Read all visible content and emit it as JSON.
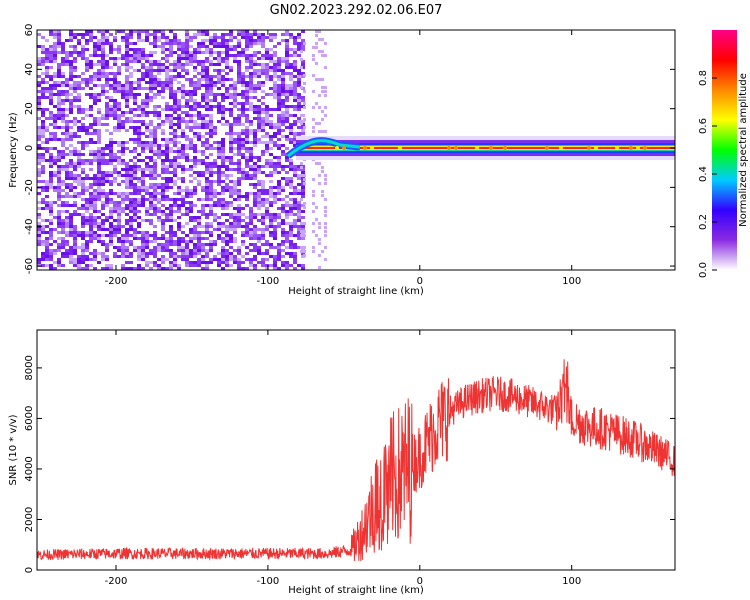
{
  "page_title": "GN02.2023.292.02.06.E07",
  "chart_data": [
    {
      "type": "heatmap",
      "title": "GN02.2023.292.02.06.E07",
      "xlabel": "Height of straight line (km)",
      "ylabel": "Frequency (Hz)",
      "xlim": [
        -252,
        168
      ],
      "ylim": [
        -62,
        60
      ],
      "x_ticks": [
        -200,
        -100,
        0,
        100
      ],
      "y_ticks": [
        -60,
        -40,
        -20,
        0,
        20,
        40,
        60
      ],
      "grid": false,
      "noise_region_x": [
        -252,
        -78
      ],
      "signal_band_center_hz": 0,
      "colorbar": {
        "label": "Normalized spectral amplitude",
        "range": [
          0.0,
          1.0
        ],
        "ticks": [
          0.0,
          0.2,
          0.4,
          0.6,
          0.8
        ],
        "colormap": [
          "#ffffff",
          "#8a2be2",
          "#3300ff",
          "#00ccff",
          "#00ff00",
          "#ffff00",
          "#ff8800",
          "#ff0000",
          "#ff0088"
        ]
      }
    },
    {
      "type": "line",
      "xlabel": "Height of straight line (km)",
      "ylabel": "SNR (10 * v/v)",
      "xlim": [
        -252,
        168
      ],
      "ylim": [
        0,
        9500
      ],
      "x_ticks": [
        -200,
        -100,
        0,
        100
      ],
      "y_ticks": [
        0,
        2000,
        4000,
        6000,
        8000
      ],
      "grid": false,
      "color": "#ee3333",
      "envelope": {
        "x": [
          -252,
          -200,
          -150,
          -100,
          -60,
          -45,
          -38,
          -30,
          -20,
          -10,
          0,
          10,
          20,
          30,
          40,
          50,
          60,
          70,
          80,
          90,
          95,
          100,
          110,
          120,
          130,
          140,
          150,
          160,
          168
        ],
        "y": [
          600,
          650,
          650,
          650,
          650,
          800,
          1500,
          2600,
          3500,
          3900,
          4500,
          5600,
          6300,
          6700,
          6900,
          7000,
          6900,
          6700,
          6500,
          6300,
          7000,
          6000,
          5700,
          5600,
          5400,
          5200,
          4900,
          4600,
          4300
        ]
      }
    }
  ]
}
